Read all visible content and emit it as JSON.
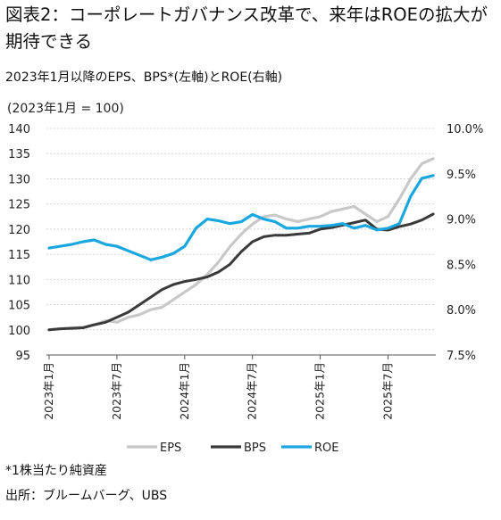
{
  "figure": {
    "title": "図表2：コーポレートガバナンス改革で、来年はROEの拡大が期待できる",
    "subtitle": "2023年1月以降のEPS、BPS*(左軸)とROE(右軸)",
    "footnote_1": "*1株当たり純資産",
    "footnote_2": "出所：ブルームバーグ、UBS"
  },
  "chart_data": {
    "type": "line",
    "index_note": "(2023年1月 = 100)",
    "x_ticks": [
      "2023年1月",
      "2023年7月",
      "2024年1月",
      "2024年7月",
      "2025年1月",
      "2025年7月"
    ],
    "left_axis": {
      "ylim": [
        95,
        140
      ],
      "ticks": [
        "95",
        "100",
        "105",
        "110",
        "115",
        "120",
        "125",
        "130",
        "135",
        "140"
      ]
    },
    "right_axis": {
      "ylim": [
        7.5,
        10.0
      ],
      "ticks": [
        "7.5%",
        "8.0%",
        "8.5%",
        "9.0%",
        "9.5%",
        "10.0%"
      ]
    },
    "grid": true,
    "legend_position": "bottom",
    "series": [
      {
        "name": "EPS",
        "axis": "left",
        "color": "#c8c8c8",
        "points": [
          [
            "2023-01",
            100.0
          ],
          [
            "2023-02",
            100.2
          ],
          [
            "2023-03",
            100.4
          ],
          [
            "2023-04",
            100.5
          ],
          [
            "2023-05",
            101.0
          ],
          [
            "2023-06",
            101.8
          ],
          [
            "2023-07",
            101.5
          ],
          [
            "2023-08",
            102.5
          ],
          [
            "2023-09",
            103.0
          ],
          [
            "2023-10",
            104.0
          ],
          [
            "2023-11",
            104.5
          ],
          [
            "2023-12",
            106.0
          ],
          [
            "2024-01",
            107.5
          ],
          [
            "2024-02",
            109.0
          ],
          [
            "2024-03",
            111.0
          ],
          [
            "2024-04",
            113.5
          ],
          [
            "2024-05",
            116.5
          ],
          [
            "2024-06",
            119.0
          ],
          [
            "2024-07",
            121.0
          ],
          [
            "2024-08",
            122.5
          ],
          [
            "2024-09",
            122.8
          ],
          [
            "2024-10",
            122.0
          ],
          [
            "2024-11",
            121.5
          ],
          [
            "2024-12",
            122.0
          ],
          [
            "2025-01",
            122.5
          ],
          [
            "2025-02",
            123.5
          ],
          [
            "2025-03",
            124.0
          ],
          [
            "2025-04",
            124.5
          ],
          [
            "2025-05",
            123.0
          ],
          [
            "2025-06",
            121.5
          ],
          [
            "2025-07",
            122.5
          ],
          [
            "2025-08",
            126.0
          ],
          [
            "2025-09",
            130.0
          ],
          [
            "2025-10",
            133.0
          ],
          [
            "2025-11",
            134.0
          ]
        ]
      },
      {
        "name": "BPS",
        "axis": "left",
        "color": "#3a3a3a",
        "points": [
          [
            "2023-01",
            100.0
          ],
          [
            "2023-02",
            100.2
          ],
          [
            "2023-03",
            100.3
          ],
          [
            "2023-04",
            100.4
          ],
          [
            "2023-05",
            101.0
          ],
          [
            "2023-06",
            101.5
          ],
          [
            "2023-07",
            102.5
          ],
          [
            "2023-08",
            103.5
          ],
          [
            "2023-09",
            105.0
          ],
          [
            "2023-10",
            106.5
          ],
          [
            "2023-11",
            108.0
          ],
          [
            "2023-12",
            109.0
          ],
          [
            "2024-01",
            109.6
          ],
          [
            "2024-02",
            110.0
          ],
          [
            "2024-03",
            110.5
          ],
          [
            "2024-04",
            111.5
          ],
          [
            "2024-05",
            113.0
          ],
          [
            "2024-06",
            115.5
          ],
          [
            "2024-07",
            117.5
          ],
          [
            "2024-08",
            118.5
          ],
          [
            "2024-09",
            118.8
          ],
          [
            "2024-10",
            118.8
          ],
          [
            "2024-11",
            119.0
          ],
          [
            "2024-12",
            119.2
          ],
          [
            "2025-01",
            120.0
          ],
          [
            "2025-02",
            120.3
          ],
          [
            "2025-03",
            120.8
          ],
          [
            "2025-04",
            121.3
          ],
          [
            "2025-05",
            121.8
          ],
          [
            "2025-06",
            120.0
          ],
          [
            "2025-07",
            119.8
          ],
          [
            "2025-08",
            120.5
          ],
          [
            "2025-09",
            121.0
          ],
          [
            "2025-10",
            121.8
          ],
          [
            "2025-11",
            123.0
          ]
        ]
      },
      {
        "name": "ROE",
        "axis": "right",
        "color": "#1aa7e0",
        "points": [
          [
            "2023-01",
            8.68
          ],
          [
            "2023-02",
            8.7
          ],
          [
            "2023-03",
            8.72
          ],
          [
            "2023-04",
            8.75
          ],
          [
            "2023-05",
            8.77
          ],
          [
            "2023-06",
            8.72
          ],
          [
            "2023-07",
            8.7
          ],
          [
            "2023-08",
            8.65
          ],
          [
            "2023-09",
            8.6
          ],
          [
            "2023-10",
            8.55
          ],
          [
            "2023-11",
            8.58
          ],
          [
            "2023-12",
            8.62
          ],
          [
            "2024-01",
            8.7
          ],
          [
            "2024-02",
            8.9
          ],
          [
            "2024-03",
            9.0
          ],
          [
            "2024-04",
            8.98
          ],
          [
            "2024-05",
            8.95
          ],
          [
            "2024-06",
            8.97
          ],
          [
            "2024-07",
            9.05
          ],
          [
            "2024-08",
            9.0
          ],
          [
            "2024-09",
            8.97
          ],
          [
            "2024-10",
            8.9
          ],
          [
            "2024-11",
            8.9
          ],
          [
            "2024-12",
            8.92
          ],
          [
            "2025-01",
            8.92
          ],
          [
            "2025-02",
            8.93
          ],
          [
            "2025-03",
            8.95
          ],
          [
            "2025-04",
            8.9
          ],
          [
            "2025-05",
            8.93
          ],
          [
            "2025-06",
            8.88
          ],
          [
            "2025-07",
            8.9
          ],
          [
            "2025-08",
            8.95
          ],
          [
            "2025-09",
            9.25
          ],
          [
            "2025-10",
            9.45
          ],
          [
            "2025-11",
            9.48
          ]
        ]
      }
    ]
  }
}
